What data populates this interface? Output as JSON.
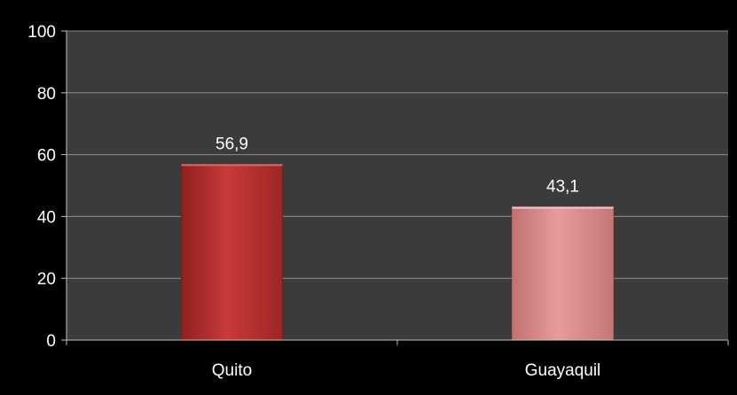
{
  "chart_data": {
    "type": "bar",
    "categories": [
      "Quito",
      "Guayaquil"
    ],
    "values": [
      56.9,
      43.1
    ],
    "data_labels": [
      "56,9",
      "43,1"
    ],
    "ylim": [
      0,
      100
    ],
    "yticks": [
      0,
      20,
      40,
      60,
      80,
      100
    ],
    "ytick_labels": [
      "0",
      "20",
      "40",
      "60",
      "80",
      "100"
    ],
    "grid": true,
    "legend": "none",
    "colors": {
      "background": "#000000",
      "plot_area": "#3b3b3b",
      "gridline": "#8c8c8c",
      "axis": "#bfbfbf",
      "bars": [
        "#b5302f",
        "#d98a8a"
      ]
    }
  }
}
